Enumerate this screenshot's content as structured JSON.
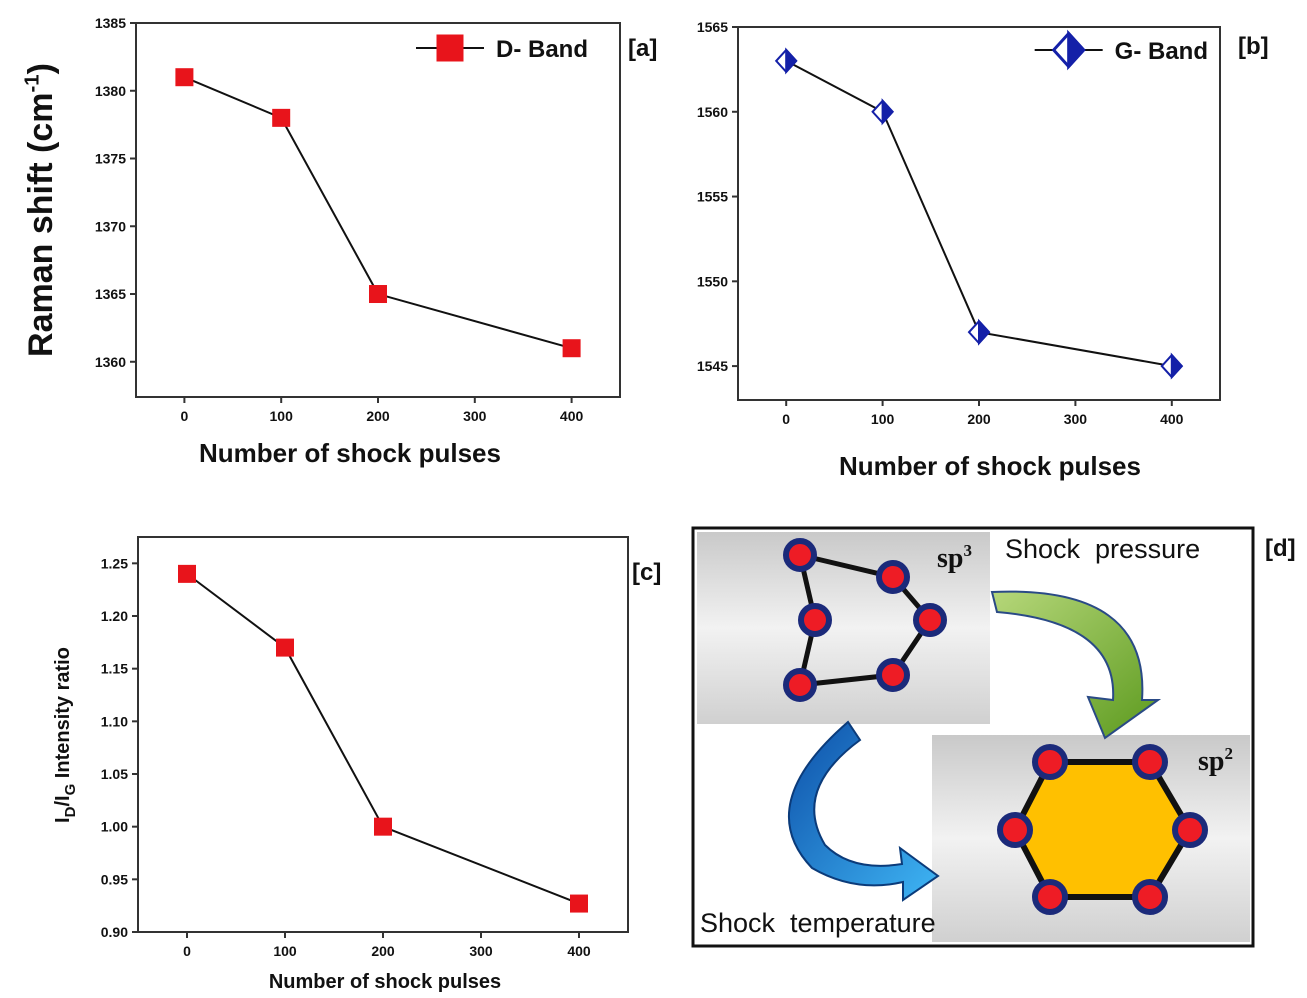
{
  "chart_data": [
    {
      "type": "line",
      "panel_label": "[a]",
      "x_label": "Number of shock pulses",
      "y_label": [
        "Raman shift (cm",
        "-1",
        ")"
      ],
      "x": [
        0,
        100,
        200,
        400
      ],
      "series": [
        {
          "name": "D- Band",
          "color": "#e8141b",
          "marker": "square",
          "values": [
            1381,
            1378,
            1365,
            1361
          ]
        }
      ],
      "xlim": [
        -50,
        450
      ],
      "xticks": [
        0,
        100,
        200,
        300,
        400
      ],
      "ylim": [
        1357.4,
        1385
      ],
      "yticks": [
        1360,
        1365,
        1370,
        1375,
        1380,
        1385
      ],
      "legend": "upper right"
    },
    {
      "type": "line",
      "panel_label": "[b]",
      "x_label": "Number of shock pulses",
      "x": [
        0,
        100,
        200,
        400
      ],
      "series": [
        {
          "name": "G- Band",
          "color": "#1420a8",
          "marker": "half-diamond",
          "values": [
            1563,
            1560,
            1547,
            1545
          ]
        }
      ],
      "xlim": [
        -50,
        450
      ],
      "xticks": [
        0,
        100,
        200,
        300,
        400
      ],
      "ylim": [
        1543,
        1565
      ],
      "yticks": [
        1545,
        1550,
        1555,
        1560,
        1565
      ],
      "legend": "upper right"
    },
    {
      "type": "line",
      "panel_label": "[c]",
      "x_label": "Number of shock pulses",
      "y_label": [
        "I",
        "D",
        "/I",
        "G",
        " Intensity ratio"
      ],
      "x": [
        0,
        100,
        200,
        400
      ],
      "series": [
        {
          "color": "#e8141b",
          "marker": "square",
          "values": [
            1.24,
            1.17,
            1.0,
            0.927
          ]
        }
      ],
      "xlim": [
        -50,
        450
      ],
      "xticks": [
        0,
        100,
        200,
        300,
        400
      ],
      "ylim": [
        0.9,
        1.275
      ],
      "yticks": [
        {
          "value": 0.9,
          "label": "0.90"
        },
        0.95,
        {
          "value": 1.0,
          "label": "1.00"
        },
        1.05,
        {
          "value": 1.1,
          "label": "1.10"
        },
        1.15,
        {
          "value": 1.2,
          "label": "1.20"
        },
        1.25
      ]
    }
  ],
  "diagram": {
    "panel_label": "[d]",
    "sp3": [
      "sp",
      "3"
    ],
    "sp2": [
      "sp",
      "2"
    ],
    "arrow_top": "Shock  pressure",
    "arrow_bottom": "Shock  temperature"
  }
}
